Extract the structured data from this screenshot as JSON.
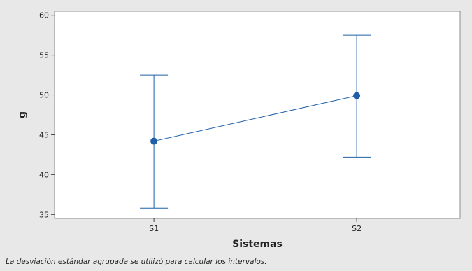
{
  "chart_data": {
    "type": "interval",
    "categories": [
      "S1",
      "S2"
    ],
    "means": [
      44.2,
      49.9
    ],
    "lower": [
      35.8,
      42.2
    ],
    "upper": [
      52.5,
      57.5
    ],
    "xlabel": "Sistemas",
    "ylabel": "g",
    "ylim": [
      34.5,
      60.5
    ],
    "yticks": [
      35,
      40,
      45,
      50,
      55,
      60
    ],
    "grid": false,
    "colors": {
      "series": "#1f5fa8",
      "plot_background": "#ffffff",
      "figure_background": "#e8e8e8"
    }
  },
  "footnote": "La desviación estándar agrupada se utilizó para calcular los intervalos."
}
